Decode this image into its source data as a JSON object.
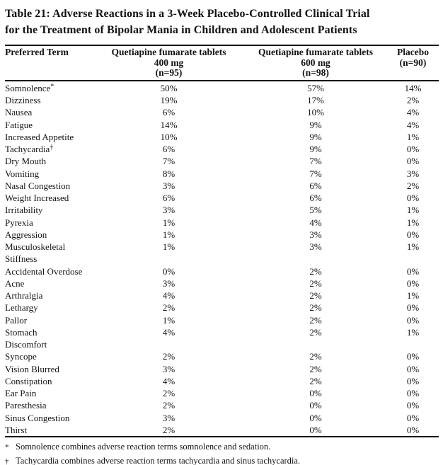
{
  "title": "Table 21: Adverse Reactions in a 3-Week Placebo-Controlled Clinical Trial\nfor the Treatment of Bipolar Mania in Children and Adolescent Patients",
  "table": {
    "headers": {
      "term": "Preferred Term",
      "q400": "Quetiapine fumarate tablets\n400 mg\n(n=95)",
      "q600": "Quetiapine fumarate tablets\n600 mg\n(n=98)",
      "placebo": "Placebo\n(n=90)"
    },
    "rows": [
      {
        "term": "Somnolence",
        "marker": "*",
        "q400": "50%",
        "q600": "57%",
        "placebo": "14%"
      },
      {
        "term": "Dizziness",
        "q400": "19%",
        "q600": "17%",
        "placebo": "2%"
      },
      {
        "term": "Nausea",
        "q400": "6%",
        "q600": "10%",
        "placebo": "4%"
      },
      {
        "term": "Fatigue",
        "q400": "14%",
        "q600": "9%",
        "placebo": "4%"
      },
      {
        "term": "Increased Appetite",
        "q400": "10%",
        "q600": "9%",
        "placebo": "1%"
      },
      {
        "term": "Tachycardia",
        "marker": "†",
        "q400": "6%",
        "q600": "9%",
        "placebo": "0%"
      },
      {
        "term": "Dry Mouth",
        "q400": "7%",
        "q600": "7%",
        "placebo": "0%"
      },
      {
        "term": "Vomiting",
        "q400": "8%",
        "q600": "7%",
        "placebo": "3%"
      },
      {
        "term": "Nasal Congestion",
        "q400": "3%",
        "q600": "6%",
        "placebo": "2%"
      },
      {
        "term": "Weight Increased",
        "q400": "6%",
        "q600": "6%",
        "placebo": "0%"
      },
      {
        "term": "Irritability",
        "q400": "3%",
        "q600": "5%",
        "placebo": "1%"
      },
      {
        "term": "Pyrexia",
        "q400": "1%",
        "q600": "4%",
        "placebo": "1%"
      },
      {
        "term": "Aggression",
        "q400": "1%",
        "q600": "3%",
        "placebo": "0%"
      },
      {
        "term": "Musculoskeletal\nStiffness",
        "q400": "1%",
        "q600": "3%",
        "placebo": "1%"
      },
      {
        "term": "Accidental Overdose",
        "q400": "0%",
        "q600": "2%",
        "placebo": "0%"
      },
      {
        "term": "Acne",
        "q400": "3%",
        "q600": "2%",
        "placebo": "0%"
      },
      {
        "term": "Arthralgia",
        "q400": "4%",
        "q600": "2%",
        "placebo": "1%"
      },
      {
        "term": "Lethargy",
        "q400": "2%",
        "q600": "2%",
        "placebo": "0%"
      },
      {
        "term": "Pallor",
        "q400": "1%",
        "q600": "2%",
        "placebo": "0%"
      },
      {
        "term": "Stomach\nDiscomfort",
        "q400": "4%",
        "q600": "2%",
        "placebo": "1%"
      },
      {
        "term": "Syncope",
        "q400": "2%",
        "q600": "2%",
        "placebo": "0%"
      },
      {
        "term": "Vision Blurred",
        "q400": "3%",
        "q600": "2%",
        "placebo": "0%"
      },
      {
        "term": "Constipation",
        "q400": "4%",
        "q600": "2%",
        "placebo": "0%"
      },
      {
        "term": "Ear Pain",
        "q400": "2%",
        "q600": "0%",
        "placebo": "0%"
      },
      {
        "term": "Paresthesia",
        "q400": "2%",
        "q600": "0%",
        "placebo": "0%"
      },
      {
        "term": "Sinus Congestion",
        "q400": "3%",
        "q600": "0%",
        "placebo": "0%"
      },
      {
        "term": "Thirst",
        "q400": "2%",
        "q600": "0%",
        "placebo": "0%"
      }
    ]
  },
  "footnotes": [
    {
      "marker": "*",
      "text": "Somnolence combines adverse reaction terms somnolence and sedation."
    },
    {
      "marker": "†",
      "text": "Tachycardia combines adverse reaction terms tachycardia and sinus tachycardia."
    }
  ]
}
